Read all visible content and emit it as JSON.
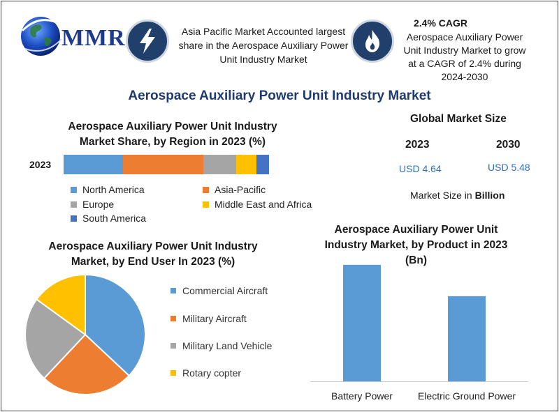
{
  "brand": {
    "name": "MMR"
  },
  "header": {
    "region_note": "Asia Pacific Market Accounted largest share in the Aerospace Auxiliary Power Unit Industry Market",
    "region_icon": "lightning-bolt-icon",
    "cagr_title": "2.4% CAGR",
    "cagr_note": "Aerospace Auxiliary Power Unit Industry Market to grow at a CAGR of 2.4% during 2024-2030",
    "cagr_icon": "flame-icon"
  },
  "main_title": "Aerospace Auxiliary Power Unit Industry Market",
  "global_market": {
    "title": "Global Market Size",
    "year_a": "2023",
    "year_b": "2030",
    "value_a": "USD 4.64",
    "value_b": "USD 5.48",
    "note_prefix": "Market Size in ",
    "note_unit": "Billion"
  },
  "chart_data": [
    {
      "type": "bar",
      "orientation": "horizontal-stacked",
      "title": "Aerospace Auxiliary Power Unit Industry Market Share, by Region in 2023 (%)",
      "categories": [
        "2023"
      ],
      "series": [
        {
          "name": "North America",
          "values": [
            29
          ],
          "color": "#5b9bd5"
        },
        {
          "name": "Asia-Pacific",
          "values": [
            39
          ],
          "color": "#ed7d31"
        },
        {
          "name": "Europe",
          "values": [
            16
          ],
          "color": "#a5a5a5"
        },
        {
          "name": "Middle East and Africa",
          "values": [
            10
          ],
          "color": "#ffc000"
        },
        {
          "name": "South America",
          "values": [
            6
          ],
          "color": "#4472c4"
        }
      ],
      "xlim": [
        0,
        100
      ],
      "legend": "bottom"
    },
    {
      "type": "pie",
      "title": "Aerospace Auxiliary Power Unit Industry Market, by End User In 2023 (%)",
      "labels": [
        "Commercial Aircraft",
        "Military Aircraft",
        "Military Land Vehicle",
        "Rotary copter"
      ],
      "values": [
        37,
        25,
        23,
        15
      ],
      "colors": [
        "#5b9bd5",
        "#ed7d31",
        "#a5a5a5",
        "#ffc000"
      ],
      "legend": "right"
    },
    {
      "type": "bar",
      "title": "Aerospace Auxiliary Power Unit Industry Market, by Product in 2023 (Bn)",
      "categories": [
        "Battery Power",
        "Electric Ground Power"
      ],
      "values": [
        2.6,
        1.9
      ],
      "ylim": [
        0,
        2.8
      ],
      "color": "#5b9bd5",
      "grid": false
    }
  ]
}
